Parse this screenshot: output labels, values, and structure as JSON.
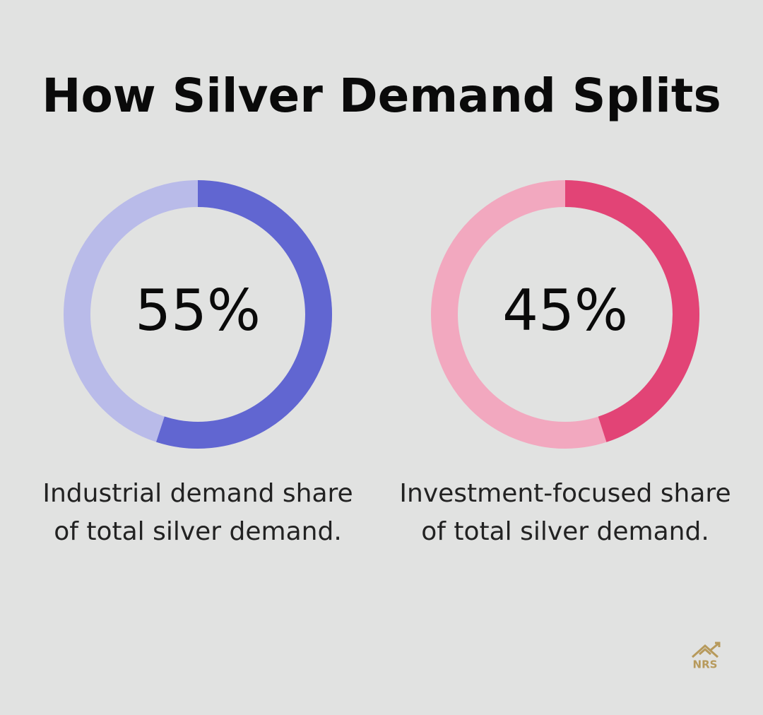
{
  "title": "How Silver Demand Splits",
  "chart_data": [
    {
      "type": "donut",
      "values": [
        55
      ],
      "value_labels": [
        "55%"
      ],
      "color": "#6166d1",
      "track_color": "#b9bbe9",
      "caption": [
        "Industrial demand share",
        "of total silver demand."
      ]
    },
    {
      "type": "donut",
      "values": [
        45
      ],
      "value_labels": [
        "45%"
      ],
      "color": "#e24476",
      "track_color": "#f2a8bf",
      "caption": [
        "Investment-focused share",
        "of total silver demand."
      ]
    }
  ],
  "logo": "NRS"
}
